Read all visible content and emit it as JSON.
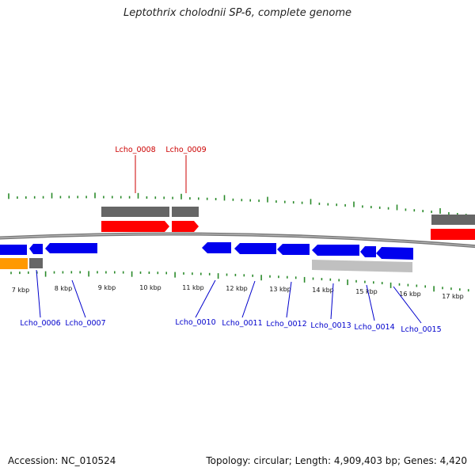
{
  "title": "Leptothrix cholodnii SP-6, complete genome",
  "footer": {
    "accession": "Accession: NC_010524",
    "summary": "Topology: circular; Length: 4,909,403 bp; Genes: 4,420"
  },
  "colors": {
    "forward_cds": "#ff0000",
    "reverse_cds": "#0000ee",
    "gene_grey": "#666666",
    "light_grey": "#c0c0c0",
    "orange": "#ff9900",
    "backbone": "#777777",
    "tick": "#2a8a2a",
    "label_red": "#cc0000",
    "label_blue": "#0000cc"
  },
  "scale_labels": [
    "7 kbp",
    "8 kbp",
    "9 kbp",
    "10 kbp",
    "11 kbp",
    "12 kbp",
    "13 kbp",
    "14 kbp",
    "15 kbp",
    "16 kbp",
    "17 kbp"
  ],
  "labels_top": [
    "Lcho_0008",
    "Lcho_0009"
  ],
  "labels_bottom": [
    "Lcho_0006",
    "Lcho_0007",
    "Lcho_0010",
    "Lcho_0011",
    "Lcho_0012",
    "Lcho_0013",
    "Lcho_0014",
    "Lcho_0015"
  ]
}
